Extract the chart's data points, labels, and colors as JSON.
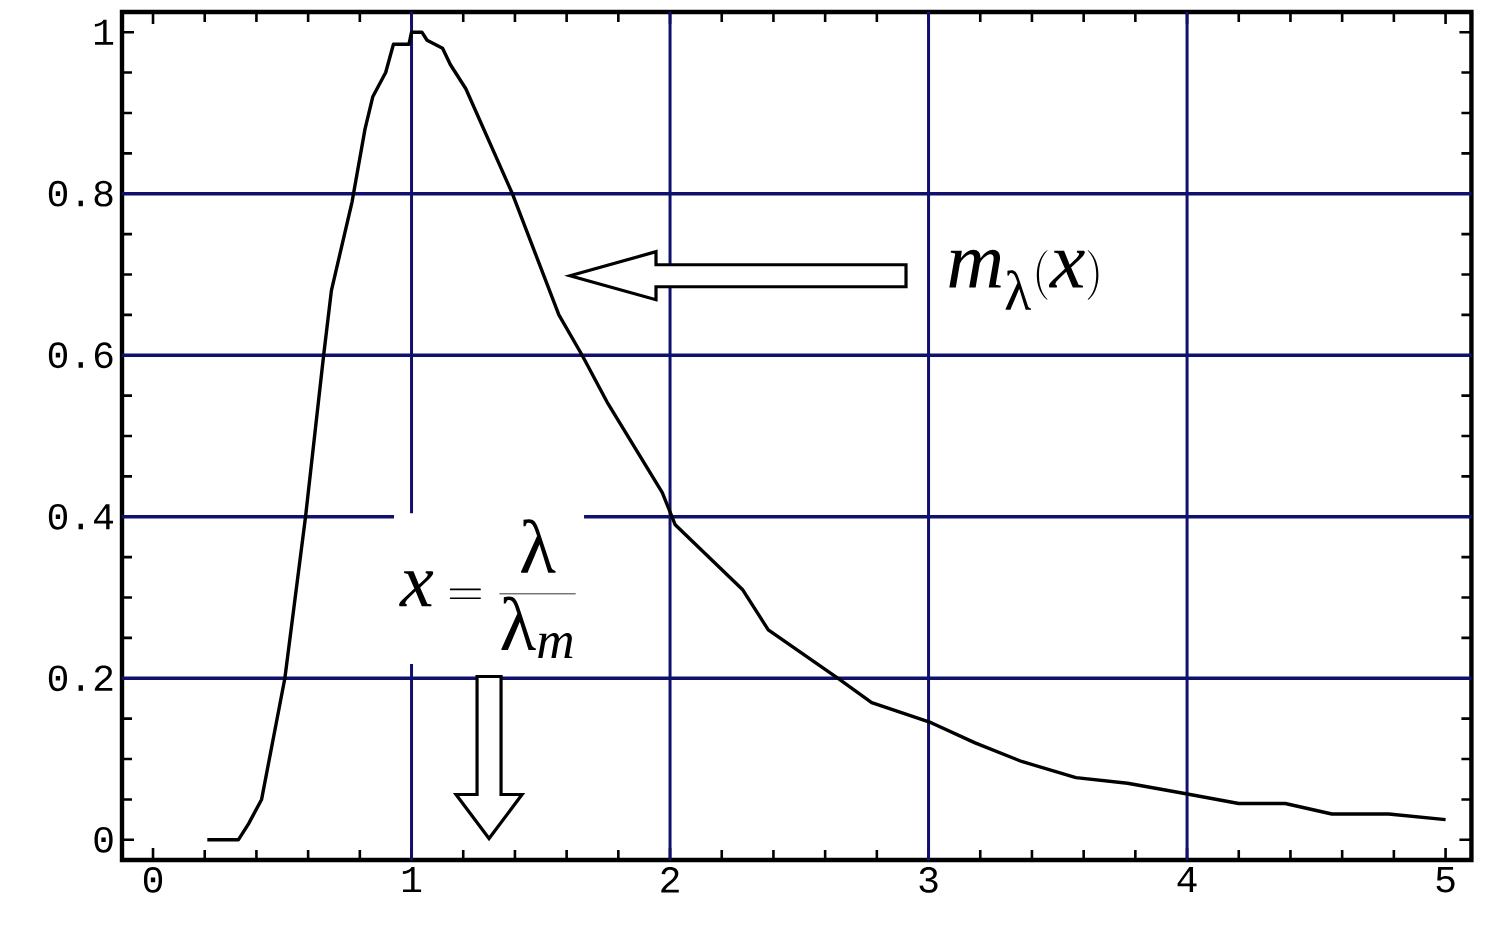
{
  "chart_data": {
    "type": "line",
    "xlabel": "x =\\frac{\\lambda}{\\lambda_m}",
    "x": [
      0.21,
      0.33,
      0.37,
      0.42,
      0.51,
      0.59,
      0.66,
      0.69,
      0.77,
      0.82,
      0.85,
      0.9,
      0.93,
      0.99,
      1.0,
      1.04,
      1.06,
      1.12,
      1.15,
      1.21,
      1.39,
      1.57,
      1.66,
      1.76,
      1.97,
      2.02,
      2.28,
      2.38,
      2.65,
      2.78,
      3.01,
      3.18,
      3.36,
      3.57,
      3.77,
      3.98,
      4.2,
      4.38,
      4.56,
      4.78,
      5.0
    ],
    "values": [
      0,
      0,
      0.02,
      0.05,
      0.2,
      0.4,
      0.6,
      0.68,
      0.79,
      0.88,
      0.92,
      0.95,
      0.985,
      0.985,
      1.0,
      1.0,
      0.99,
      0.98,
      0.96,
      0.93,
      0.8,
      0.65,
      0.6,
      0.54,
      0.43,
      0.39,
      0.31,
      0.26,
      0.2,
      0.17,
      0.145,
      0.12,
      0.097,
      0.077,
      0.07,
      0.058,
      0.045,
      0.045,
      0.032,
      0.032,
      0.025
    ],
    "color": "#000000",
    "xlim": [
      -0.12,
      5.1
    ],
    "ylim": [
      -0.025,
      1.025
    ],
    "xticks": [
      0,
      1,
      2,
      3,
      4,
      5
    ],
    "yticks": [
      0,
      0.2,
      0.4,
      0.6,
      0.8,
      1
    ],
    "grid": true,
    "annotations": [
      "m_\\lambda(x)"
    ]
  }
}
